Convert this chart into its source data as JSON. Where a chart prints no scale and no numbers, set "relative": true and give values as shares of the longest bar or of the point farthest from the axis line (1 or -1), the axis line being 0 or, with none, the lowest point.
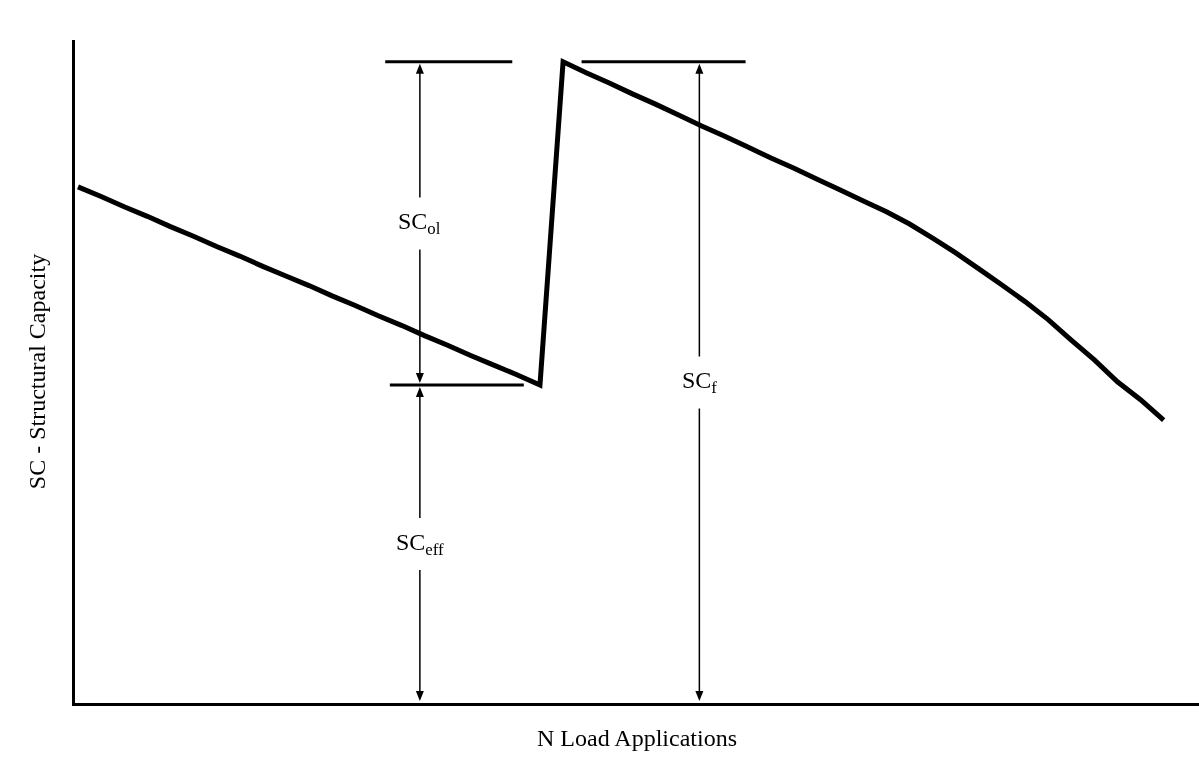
{
  "chart_data": {
    "type": "line",
    "relative": true,
    "xlabel": "N Load Applications",
    "ylabel": "SC - Structural Capacity",
    "categories": [
      null,
      null,
      null,
      null,
      null,
      null,
      null,
      null,
      null,
      null,
      null,
      null,
      null,
      null,
      null,
      null,
      null,
      null,
      null,
      null,
      null,
      null,
      null,
      null,
      null,
      null,
      null,
      null,
      null,
      null,
      null,
      null,
      null,
      null,
      null,
      null,
      null,
      null,
      null,
      null,
      null,
      null,
      null,
      null,
      null,
      null,
      null,
      null
    ],
    "marker": "none",
    "line_style": "solid",
    "ref_lines": [
      {
        "axis": "y",
        "value": 1.0
      },
      {
        "axis": "y",
        "value": 0.496
      }
    ],
    "series": [
      {
        "color": "#000000",
        "values": [
          0.805,
          0.79,
          0.774,
          0.759,
          0.743,
          0.728,
          0.712,
          0.697,
          0.681,
          0.666,
          0.651,
          0.635,
          0.62,
          0.604,
          0.589,
          0.573,
          0.558,
          0.542,
          0.527,
          0.512,
          0.496,
          1.0,
          0.983,
          0.967,
          0.95,
          0.934,
          0.917,
          0.9,
          0.884,
          0.867,
          0.85,
          0.834,
          0.817,
          0.8,
          0.783,
          0.766,
          0.747,
          0.725,
          0.702,
          0.677,
          0.652,
          0.626,
          0.598,
          0.566,
          0.535,
          0.501,
          0.473,
          0.441
        ]
      }
    ],
    "annotations": [
      "SC$_{ol}$",
      "SC$_{eff}$",
      "SC$_{f}$"
    ]
  }
}
